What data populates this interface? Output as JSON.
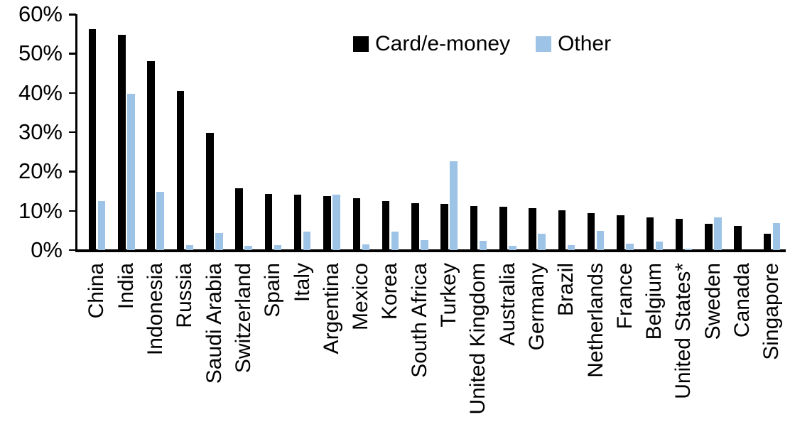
{
  "chart_data": {
    "type": "bar",
    "title": "",
    "categories": [
      "China",
      "India",
      "Indonesia",
      "Russia",
      "Saudi Arabia",
      "Switzerland",
      "Spain",
      "Italy",
      "Argentina",
      "Mexico",
      "Korea",
      "South Africa",
      "Turkey",
      "United Kingdom",
      "Australia",
      "Germany",
      "Brazil",
      "Netherlands",
      "France",
      "Belgium",
      "United States*",
      "Sweden",
      "Canada",
      "Singapore"
    ],
    "series": [
      {
        "name": "Card/e-money",
        "color": "#000000",
        "values": [
          56.3,
          55.0,
          48.3,
          40.6,
          30.0,
          15.8,
          14.4,
          14.2,
          13.7,
          13.2,
          12.5,
          12.0,
          11.8,
          11.3,
          11.1,
          10.7,
          10.1,
          9.5,
          8.8,
          8.3,
          8.0,
          6.7,
          6.2,
          4.2
        ]
      },
      {
        "name": "Other",
        "color": "#9DC3E6",
        "values": [
          12.5,
          39.8,
          14.8,
          1.2,
          4.3,
          1.0,
          1.2,
          4.8,
          14.1,
          1.5,
          4.8,
          2.5,
          22.7,
          2.4,
          1.1,
          4.2,
          1.3,
          4.9,
          1.6,
          2.2,
          0.3,
          8.3,
          0.0,
          6.9
        ]
      }
    ],
    "xlabel": "",
    "ylabel": "",
    "ylim": [
      0,
      60
    ],
    "ytick_step": 10,
    "ytick_labels": [
      "60%",
      "50%",
      "40%",
      "30%",
      "20%",
      "10%",
      "0%"
    ],
    "value_unit": "%",
    "grid": false,
    "legend": {
      "position": "top-inside",
      "entries": [
        "Card/e-money",
        "Other"
      ]
    },
    "axis_color": "#000000"
  }
}
